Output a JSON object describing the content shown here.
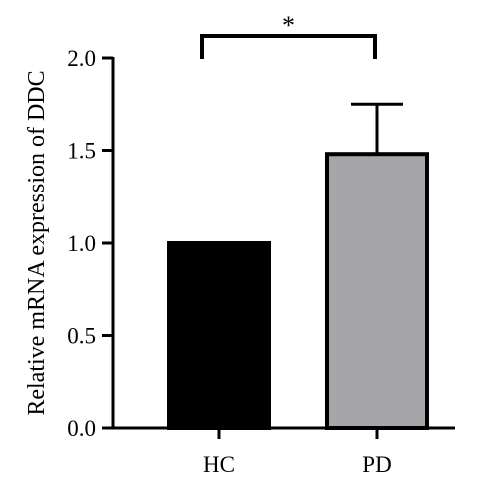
{
  "chart_data": {
    "type": "bar",
    "categories": [
      "HC",
      "PD"
    ],
    "values": [
      1.0,
      1.48
    ],
    "errors": [
      0,
      0.27
    ],
    "ylabel": "Relative mRNA expression of DDC",
    "xlabel": "",
    "ylim": [
      0,
      2.0
    ],
    "yticks": [
      "0.0",
      "0.5",
      "1.0",
      "1.5",
      "2.0"
    ],
    "yticks_values": [
      0,
      0.5,
      1.0,
      1.5,
      2.0
    ],
    "bar_colors": [
      "#000000",
      "#a6a5aa"
    ],
    "significance": {
      "label": "*",
      "between": [
        "HC",
        "PD"
      ]
    },
    "grid": false,
    "legend": "none"
  }
}
